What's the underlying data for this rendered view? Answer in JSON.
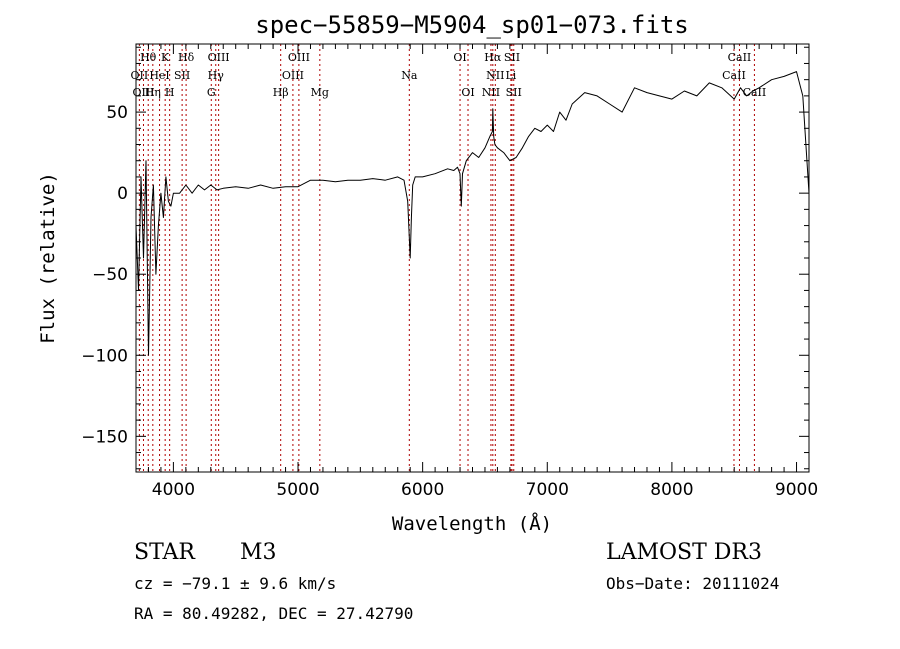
{
  "chart_data": {
    "type": "line",
    "title": "spec−55859−M5904_sp01−073.fits",
    "xlabel": "Wavelength (Å)",
    "ylabel": "Flux (relative)",
    "xlim": [
      3700,
      9100
    ],
    "ylim": [
      -172,
      92
    ],
    "x_ticks": [
      4000,
      5000,
      6000,
      7000,
      8000,
      9000
    ],
    "x_tick_labels": [
      "4000",
      "5000",
      "6000",
      "7000",
      "8000",
      "9000"
    ],
    "y_ticks": [
      50,
      0,
      -50,
      -100,
      -150
    ],
    "y_tick_labels": [
      "50",
      "0",
      "−50",
      "−100",
      "−150"
    ],
    "series": [
      {
        "name": "flux",
        "x": [
          3700,
          3720,
          3740,
          3760,
          3780,
          3800,
          3820,
          3840,
          3860,
          3880,
          3900,
          3920,
          3940,
          3960,
          3980,
          4000,
          4050,
          4100,
          4150,
          4200,
          4250,
          4300,
          4350,
          4400,
          4500,
          4600,
          4700,
          4800,
          4900,
          5000,
          5100,
          5200,
          5300,
          5400,
          5500,
          5600,
          5700,
          5800,
          5850,
          5880,
          5900,
          5910,
          5920,
          5940,
          6000,
          6100,
          6200,
          6250,
          6280,
          6300,
          6310,
          6320,
          6350,
          6400,
          6450,
          6500,
          6540,
          6560,
          6563,
          6570,
          6580,
          6600,
          6650,
          6700,
          6750,
          6800,
          6850,
          6900,
          6950,
          7000,
          7050,
          7100,
          7150,
          7200,
          7300,
          7400,
          7500,
          7600,
          7700,
          7800,
          7900,
          8000,
          8100,
          8200,
          8300,
          8400,
          8500,
          8550,
          8600,
          8650,
          8700,
          8800,
          8900,
          9000,
          9050,
          9100
        ],
        "y": [
          -20,
          -60,
          10,
          -40,
          20,
          -100,
          -15,
          5,
          -50,
          -20,
          0,
          -15,
          10,
          -5,
          -8,
          0,
          0,
          5,
          0,
          5,
          2,
          5,
          2,
          3,
          4,
          3,
          5,
          3,
          4,
          4,
          8,
          8,
          7,
          8,
          8,
          9,
          8,
          10,
          8,
          -5,
          -40,
          -15,
          5,
          10,
          10,
          12,
          15,
          14,
          16,
          12,
          -8,
          12,
          20,
          25,
          22,
          28,
          35,
          38,
          52,
          35,
          30,
          28,
          25,
          20,
          22,
          28,
          35,
          40,
          38,
          42,
          38,
          50,
          45,
          55,
          62,
          60,
          55,
          50,
          65,
          62,
          60,
          58,
          63,
          60,
          68,
          65,
          58,
          65,
          60,
          63,
          65,
          70,
          72,
          75,
          60,
          0
        ]
      }
    ],
    "annotations": [
      {
        "text": "Hθ",
        "x": 3798,
        "row": 1
      },
      {
        "text": "K",
        "x": 3934,
        "row": 1
      },
      {
        "text": "Hδ",
        "x": 4102,
        "row": 1
      },
      {
        "text": "OIII",
        "x": 4363,
        "row": 1
      },
      {
        "text": "OIII",
        "x": 5007,
        "row": 1
      },
      {
        "text": "OI",
        "x": 6300,
        "row": 1
      },
      {
        "text": "Hα",
        "x": 6563,
        "row": 1
      },
      {
        "text": "SII",
        "x": 6717,
        "row": 1
      },
      {
        "text": "CaII",
        "x": 8542,
        "row": 1
      },
      {
        "text": "OII",
        "x": 3727,
        "row": 2
      },
      {
        "text": "HeI",
        "x": 3889,
        "row": 2
      },
      {
        "text": "SII",
        "x": 4070,
        "row": 2
      },
      {
        "text": "Hγ",
        "x": 4340,
        "row": 2
      },
      {
        "text": "OIII",
        "x": 4959,
        "row": 2
      },
      {
        "text": "Na",
        "x": 5893,
        "row": 2
      },
      {
        "text": "NII",
        "x": 6583,
        "row": 2
      },
      {
        "text": "Li",
        "x": 6708,
        "row": 2
      },
      {
        "text": "CaII",
        "x": 8498,
        "row": 2
      },
      {
        "text": "OIII",
        "x": 3760,
        "row": 3
      },
      {
        "text": "Hη",
        "x": 3835,
        "row": 3
      },
      {
        "text": "H",
        "x": 3970,
        "row": 3
      },
      {
        "text": "G",
        "x": 4304,
        "row": 3
      },
      {
        "text": "Hβ",
        "x": 4861,
        "row": 3
      },
      {
        "text": "Mg",
        "x": 5175,
        "row": 3
      },
      {
        "text": "OI",
        "x": 6364,
        "row": 3
      },
      {
        "text": "NII",
        "x": 6548,
        "row": 3
      },
      {
        "text": "SII",
        "x": 6731,
        "row": 3
      },
      {
        "text": "CaII",
        "x": 8662,
        "row": 3
      }
    ],
    "line_markers": [
      3727,
      3760,
      3798,
      3835,
      3889,
      3934,
      3970,
      4070,
      4102,
      4304,
      4340,
      4363,
      4861,
      4959,
      5007,
      5175,
      5893,
      6300,
      6364,
      6548,
      6563,
      6583,
      6708,
      6717,
      6731,
      8498,
      8542,
      8662
    ]
  },
  "info": {
    "object_class": "STAR",
    "subclass": "M3",
    "survey": "LAMOST DR3",
    "cz": "cz = −79.1 ± 9.6 km/s",
    "obs_date": "Obs−Date: 20111024",
    "coords": "RA =  80.49282, DEC =  27.42790"
  }
}
